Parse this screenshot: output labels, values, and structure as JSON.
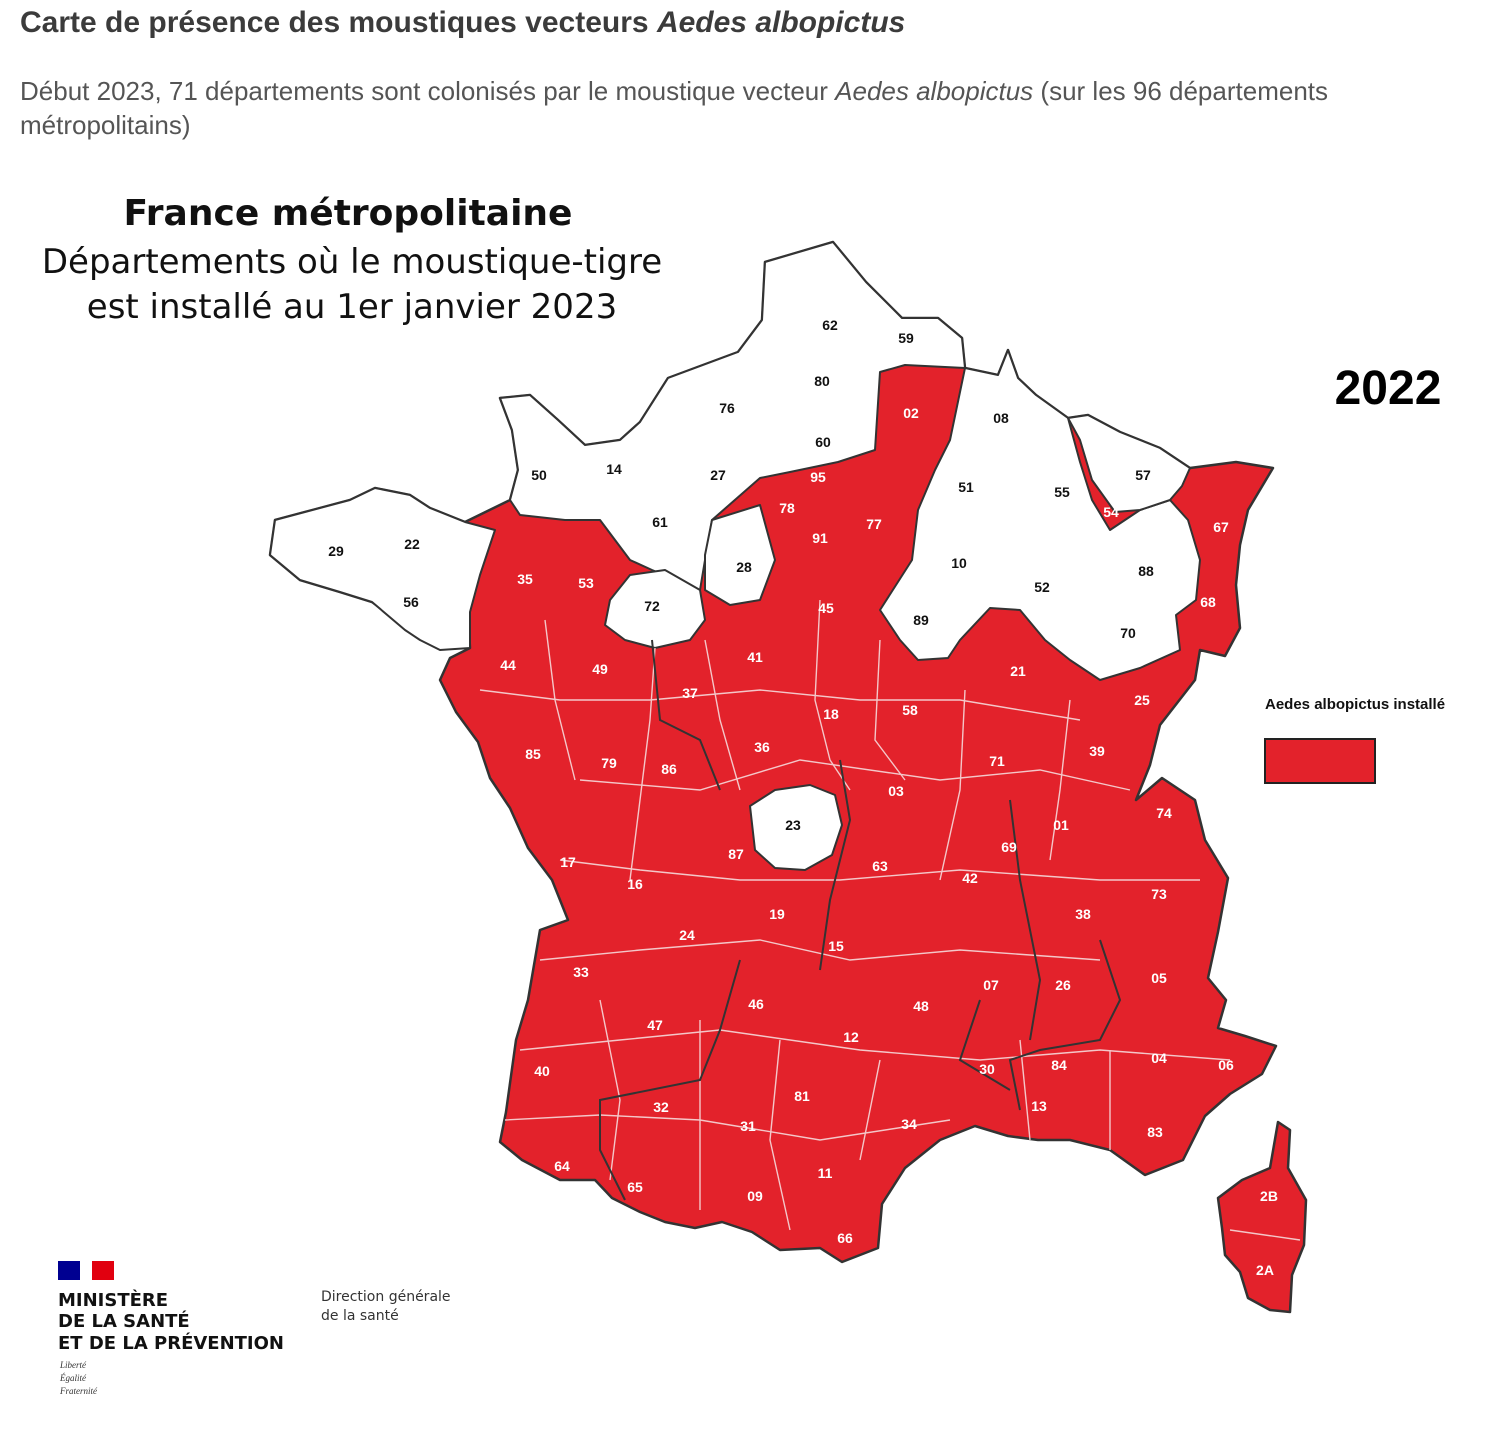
{
  "header": {
    "title_prefix": "Carte de présence des moustiques vecteurs ",
    "title_species": "Aedes albopictus",
    "subtitle_prefix": "Début 2023, 71 départements sont colonisés par le moustique vecteur ",
    "subtitle_species": "Aedes albopictus",
    "subtitle_suffix": " (sur les 96 départements métropolitains)"
  },
  "map": {
    "heading_line1": "France métropolitaine",
    "heading_line2": "Départements où le moustique-tigre",
    "heading_line3": "est installé au 1er janvier 2023",
    "year_label": "2022",
    "colors": {
      "installed": "#e3222b",
      "not_installed": "#ffffff",
      "border": "#333333"
    },
    "departments": [
      {
        "code": "62",
        "installed": false
      },
      {
        "code": "59",
        "installed": false
      },
      {
        "code": "80",
        "installed": false
      },
      {
        "code": "02",
        "installed": true
      },
      {
        "code": "08",
        "installed": false
      },
      {
        "code": "76",
        "installed": false
      },
      {
        "code": "60",
        "installed": false
      },
      {
        "code": "50",
        "installed": false
      },
      {
        "code": "14",
        "installed": false
      },
      {
        "code": "27",
        "installed": false
      },
      {
        "code": "95",
        "installed": true
      },
      {
        "code": "51",
        "installed": false
      },
      {
        "code": "55",
        "installed": false
      },
      {
        "code": "57",
        "installed": false
      },
      {
        "code": "78",
        "installed": true
      },
      {
        "code": "77",
        "installed": true
      },
      {
        "code": "54",
        "installed": true
      },
      {
        "code": "67",
        "installed": true
      },
      {
        "code": "91",
        "installed": true
      },
      {
        "code": "61",
        "installed": false
      },
      {
        "code": "29",
        "installed": false
      },
      {
        "code": "22",
        "installed": false
      },
      {
        "code": "35",
        "installed": true
      },
      {
        "code": "53",
        "installed": true
      },
      {
        "code": "28",
        "installed": false
      },
      {
        "code": "10",
        "installed": false
      },
      {
        "code": "88",
        "installed": false
      },
      {
        "code": "52",
        "installed": false
      },
      {
        "code": "68",
        "installed": true
      },
      {
        "code": "56",
        "installed": false
      },
      {
        "code": "72",
        "installed": false
      },
      {
        "code": "45",
        "installed": true
      },
      {
        "code": "89",
        "installed": false
      },
      {
        "code": "70",
        "installed": false
      },
      {
        "code": "44",
        "installed": true
      },
      {
        "code": "49",
        "installed": true
      },
      {
        "code": "41",
        "installed": true
      },
      {
        "code": "21",
        "installed": true
      },
      {
        "code": "37",
        "installed": true
      },
      {
        "code": "18",
        "installed": true
      },
      {
        "code": "58",
        "installed": true
      },
      {
        "code": "25",
        "installed": true
      },
      {
        "code": "85",
        "installed": true
      },
      {
        "code": "36",
        "installed": true
      },
      {
        "code": "71",
        "installed": true
      },
      {
        "code": "39",
        "installed": true
      },
      {
        "code": "79",
        "installed": true
      },
      {
        "code": "86",
        "installed": true
      },
      {
        "code": "03",
        "installed": true
      },
      {
        "code": "74",
        "installed": true
      },
      {
        "code": "23",
        "installed": false
      },
      {
        "code": "01",
        "installed": true
      },
      {
        "code": "69",
        "installed": true
      },
      {
        "code": "17",
        "installed": true
      },
      {
        "code": "87",
        "installed": true
      },
      {
        "code": "63",
        "installed": true
      },
      {
        "code": "42",
        "installed": true
      },
      {
        "code": "73",
        "installed": true
      },
      {
        "code": "16",
        "installed": true
      },
      {
        "code": "38",
        "installed": true
      },
      {
        "code": "19",
        "installed": true
      },
      {
        "code": "24",
        "installed": true
      },
      {
        "code": "15",
        "installed": true
      },
      {
        "code": "33",
        "installed": true
      },
      {
        "code": "07",
        "installed": true
      },
      {
        "code": "26",
        "installed": true
      },
      {
        "code": "05",
        "installed": true
      },
      {
        "code": "46",
        "installed": true
      },
      {
        "code": "48",
        "installed": true
      },
      {
        "code": "47",
        "installed": true
      },
      {
        "code": "12",
        "installed": true
      },
      {
        "code": "04",
        "installed": true
      },
      {
        "code": "06",
        "installed": true
      },
      {
        "code": "40",
        "installed": true
      },
      {
        "code": "30",
        "installed": true
      },
      {
        "code": "84",
        "installed": true
      },
      {
        "code": "81",
        "installed": true
      },
      {
        "code": "32",
        "installed": true
      },
      {
        "code": "13",
        "installed": true
      },
      {
        "code": "31",
        "installed": true
      },
      {
        "code": "34",
        "installed": true
      },
      {
        "code": "83",
        "installed": true
      },
      {
        "code": "64",
        "installed": true
      },
      {
        "code": "65",
        "installed": true
      },
      {
        "code": "09",
        "installed": true
      },
      {
        "code": "11",
        "installed": true
      },
      {
        "code": "66",
        "installed": true
      },
      {
        "code": "2B",
        "installed": true
      },
      {
        "code": "2A",
        "installed": true
      }
    ]
  },
  "legend": {
    "label": "Aedes albopictus installé"
  },
  "logo": {
    "line1": "MINISTÈRE",
    "line2": "DE LA SANTÉ",
    "line3": "ET DE LA PRÉVENTION",
    "motto1": "Liberté",
    "motto2": "Égalité",
    "motto3": "Fraternité",
    "dgs_line1": "Direction générale",
    "dgs_line2": "de la santé",
    "flag_colors": [
      "#000091",
      "#ffffff",
      "#e1000f"
    ]
  }
}
